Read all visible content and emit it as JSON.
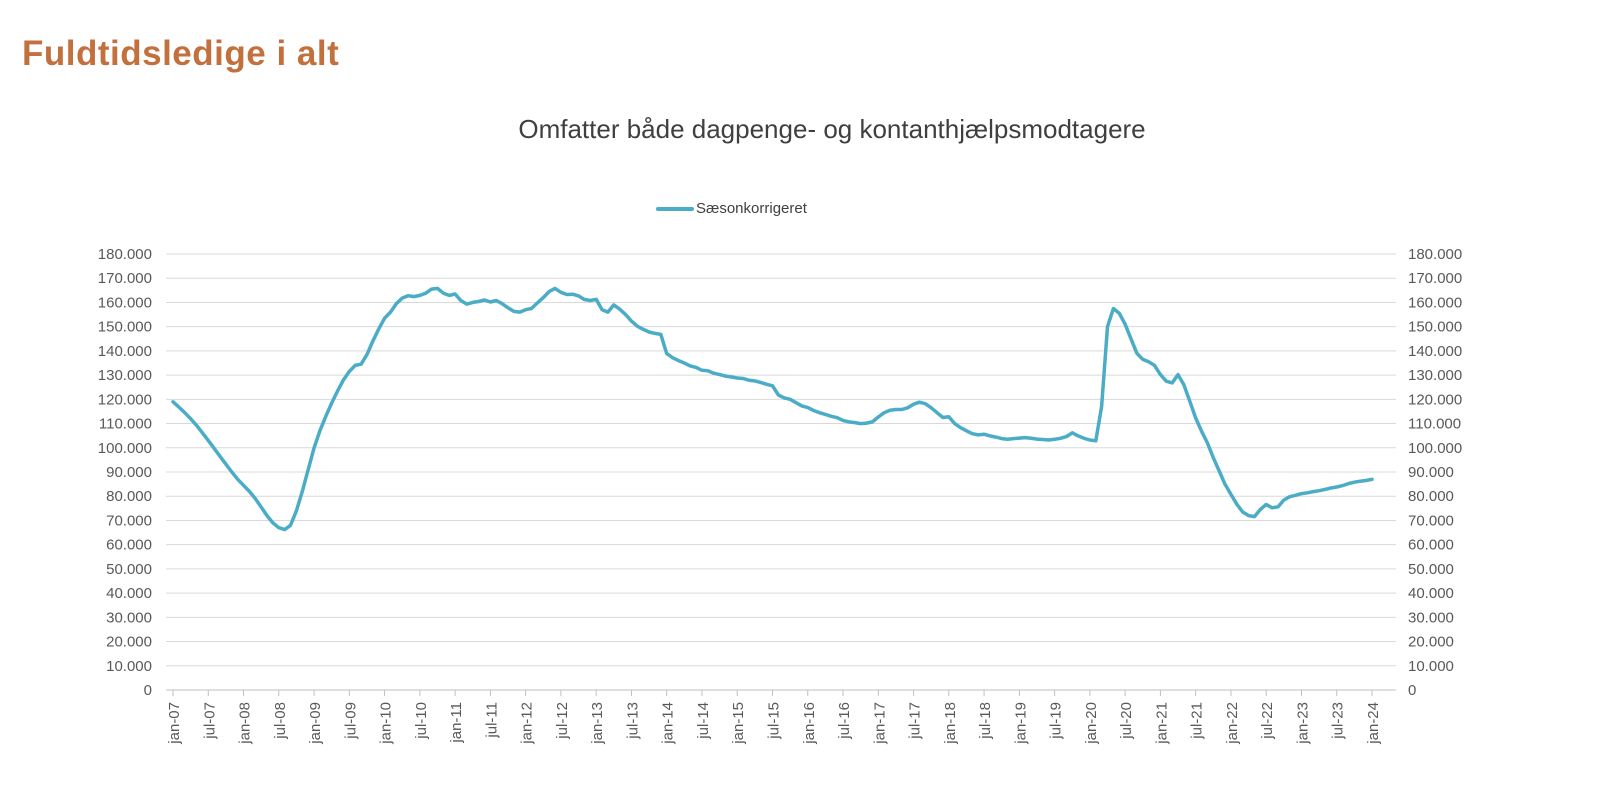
{
  "page_title": "Fuldtidsledige i alt",
  "chart_data": {
    "type": "line",
    "title": "Fuldtidsledige i alt",
    "subtitle": "Omfatter både dagpenge- og kontanthjælpsmodtagere",
    "legend_position": "top-center",
    "grid": "horizontal",
    "dual_y_axis": true,
    "ylim": [
      0,
      180000
    ],
    "y_tick_step": 10000,
    "y_tick_labels": [
      "180.000",
      "170.000",
      "160.000",
      "150.000",
      "140.000",
      "130.000",
      "120.000",
      "110.000",
      "100.000",
      "90.000",
      "80.000",
      "70.000",
      "60.000",
      "50.000",
      "40.000",
      "30.000",
      "20.000",
      "10.000",
      "0"
    ],
    "x_tick_labels": [
      "jan-07",
      "jul-07",
      "jan-08",
      "jul-08",
      "jan-09",
      "jul-09",
      "jan-10",
      "jul-10",
      "jan-11",
      "jul-11",
      "jan-12",
      "jul-12",
      "jan-13",
      "jul-13",
      "jan-14",
      "jul-14",
      "jan-15",
      "jul-15",
      "jan-16",
      "jul-16",
      "jan-17",
      "jul-17",
      "jan-18",
      "jul-18",
      "jan-19",
      "jul-19",
      "jan-20",
      "jul-20",
      "jan-21",
      "jul-21",
      "jan-22",
      "jul-22",
      "jan-23",
      "jul-23",
      "jan-24"
    ],
    "x_unit": "monthly from jan-2007 to jan-2024",
    "axis_color": "#bfbfbf",
    "gridline_color": "#d9d9d9",
    "series": [
      {
        "name": "Sæsonkorrigeret",
        "color": "#4BACC6",
        "values": [
          119000,
          116800,
          114500,
          112000,
          109300,
          106200,
          103000,
          99800,
          96500,
          93200,
          90000,
          87000,
          84500,
          82000,
          79000,
          75500,
          72000,
          69000,
          67000,
          66200,
          68000,
          74000,
          82000,
          91000,
          100000,
          107000,
          113000,
          118500,
          123500,
          128000,
          131500,
          134000,
          134500,
          138500,
          144000,
          149000,
          153500,
          156000,
          159500,
          161800,
          162800,
          162400,
          162900,
          163800,
          165500,
          165800,
          163800,
          162900,
          163500,
          160700,
          159300,
          160000,
          160400,
          161000,
          160200,
          160800,
          159500,
          157800,
          156300,
          156000,
          157000,
          157500,
          159800,
          162000,
          164500,
          165800,
          164200,
          163300,
          163400,
          162700,
          161200,
          160800,
          161300,
          157000,
          156000,
          159000,
          157200,
          155000,
          152300,
          150200,
          148900,
          147800,
          147200,
          146800,
          138900,
          137200,
          136000,
          135000,
          133800,
          133200,
          132000,
          131800,
          130800,
          130200,
          129600,
          129200,
          128800,
          128600,
          127900,
          127600,
          127000,
          126200,
          125600,
          121800,
          120600,
          120000,
          118600,
          117300,
          116600,
          115400,
          114500,
          113800,
          113000,
          112400,
          111300,
          110700,
          110400,
          110000,
          110200,
          110700,
          112700,
          114500,
          115500,
          115800,
          115800,
          116500,
          118000,
          118800,
          118200,
          116500,
          114500,
          112500,
          112800,
          110000,
          108300,
          107000,
          105800,
          105300,
          105600,
          104900,
          104400,
          103800,
          103500,
          103800,
          104000,
          104200,
          103900,
          103600,
          103400,
          103200,
          103500,
          103900,
          104600,
          106200,
          104900,
          103900,
          103200,
          102900,
          117000,
          150000,
          157500,
          155500,
          151000,
          145000,
          139000,
          136500,
          135500,
          134000,
          130200,
          127500,
          126800,
          130200,
          126000,
          119200,
          112300,
          106800,
          102000,
          95900,
          90400,
          84900,
          80800,
          76700,
          73500,
          72000,
          71600,
          74500,
          76600,
          75200,
          75600,
          78400,
          79800,
          80400,
          81100,
          81400,
          81900,
          82300,
          82800,
          83400,
          83800,
          84400,
          85200,
          85800,
          86200,
          86500,
          87000
        ]
      }
    ]
  }
}
